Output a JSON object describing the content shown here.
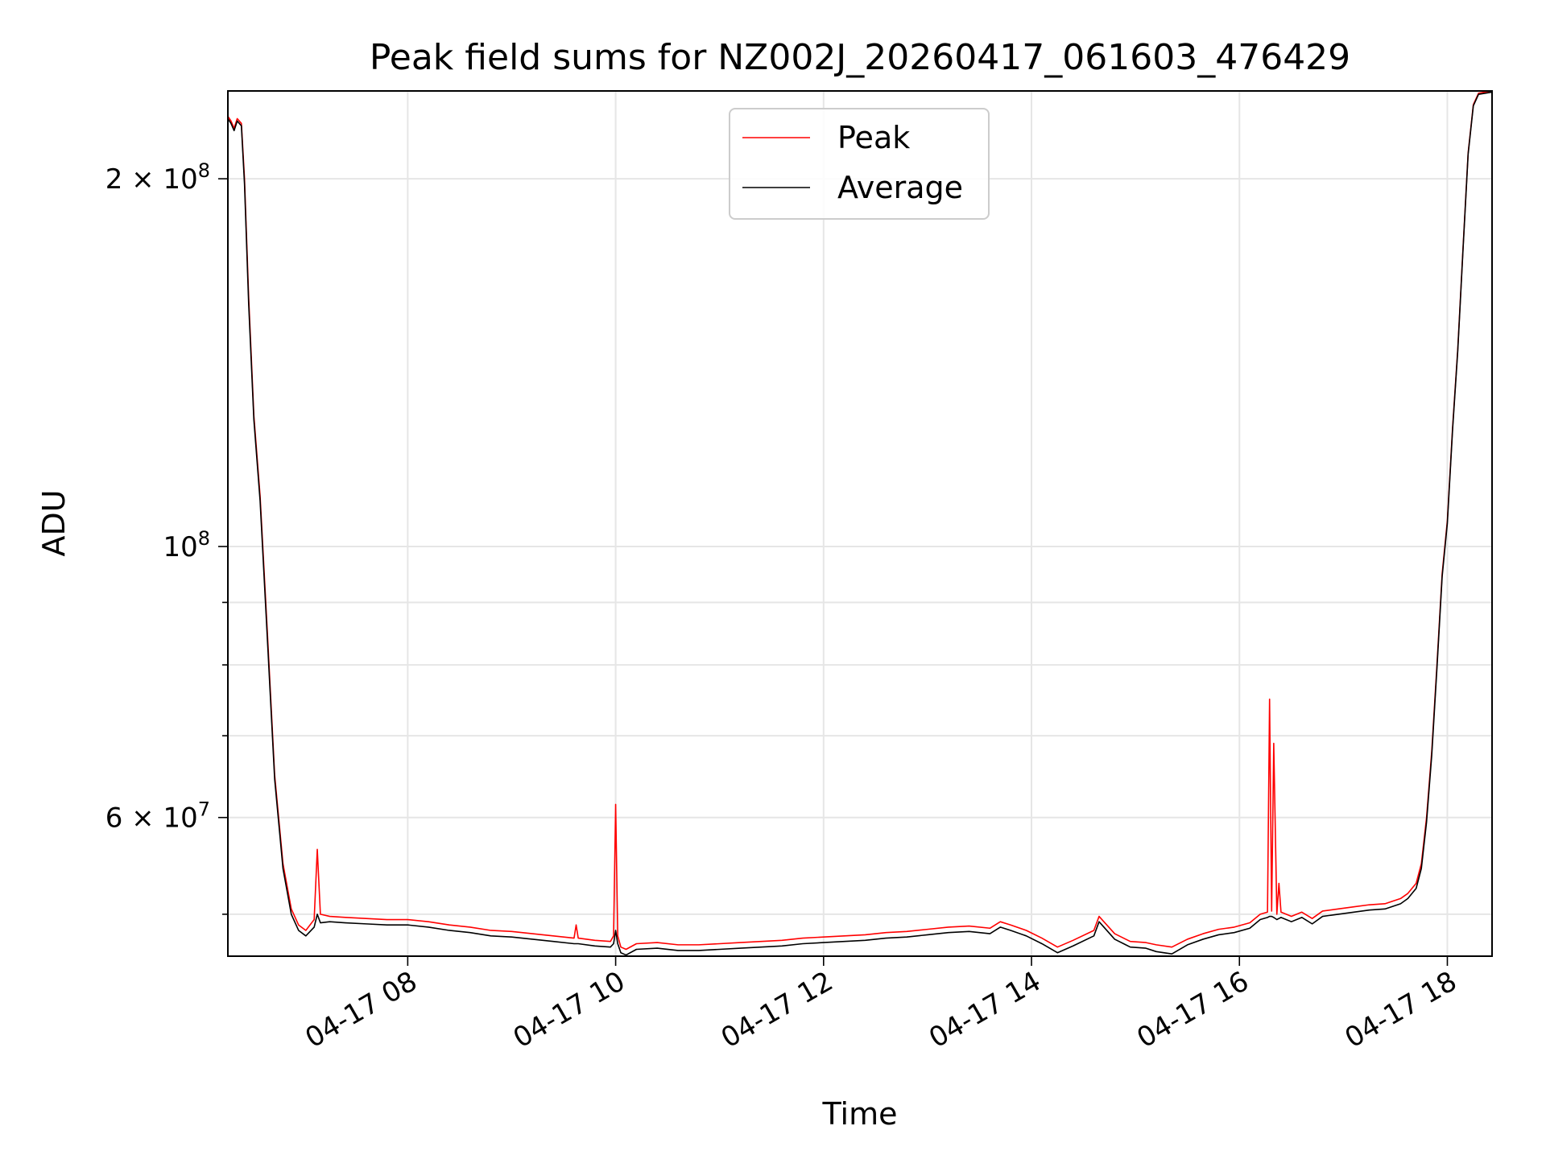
{
  "chart_data": {
    "type": "line",
    "title": "Peak field sums for NZ002J_20260417_061603_476429",
    "xlabel": "Time",
    "ylabel": "ADU",
    "yscale": "log",
    "grid": true,
    "legend_position": "top-center",
    "xlim": [
      6.27,
      18.43
    ],
    "ylim": [
      46200000,
      236000000
    ],
    "x_unit": "hours on 2026-04-17",
    "x_ticks": [
      {
        "value": 8,
        "label": "04-17 08"
      },
      {
        "value": 10,
        "label": "04-17 10"
      },
      {
        "value": 12,
        "label": "04-17 12"
      },
      {
        "value": 14,
        "label": "04-17 14"
      },
      {
        "value": 16,
        "label": "04-17 16"
      },
      {
        "value": 18,
        "label": "04-17 18"
      }
    ],
    "y_major_ticks": [
      {
        "value": 200000000,
        "base": "2 × 10",
        "exp": "8"
      },
      {
        "value": 100000000,
        "base": "10",
        "exp": "8"
      },
      {
        "value": 60000000,
        "base": "6 × 10",
        "exp": "7"
      }
    ],
    "y_minor_ticks": [
      50000000,
      70000000,
      80000000,
      90000000
    ],
    "series": [
      {
        "name": "Peak",
        "color": "#ff0000",
        "x": [
          6.27,
          6.3,
          6.33,
          6.36,
          6.4,
          6.43,
          6.47,
          6.52,
          6.58,
          6.65,
          6.72,
          6.8,
          6.88,
          6.95,
          7.02,
          7.1,
          7.13,
          7.16,
          7.25,
          7.4,
          7.6,
          7.8,
          8.0,
          8.2,
          8.4,
          8.6,
          8.8,
          9.0,
          9.2,
          9.4,
          9.6,
          9.62,
          9.64,
          9.8,
          9.95,
          9.98,
          10.0,
          10.02,
          10.05,
          10.1,
          10.2,
          10.4,
          10.6,
          10.8,
          11.0,
          11.2,
          11.4,
          11.6,
          11.8,
          12.0,
          12.2,
          12.4,
          12.6,
          12.8,
          13.0,
          13.2,
          13.4,
          13.6,
          13.7,
          13.8,
          13.95,
          14.1,
          14.25,
          14.4,
          14.6,
          14.65,
          14.8,
          14.95,
          15.1,
          15.2,
          15.35,
          15.5,
          15.65,
          15.8,
          15.95,
          16.1,
          16.2,
          16.27,
          16.29,
          16.31,
          16.33,
          16.36,
          16.38,
          16.4,
          16.5,
          16.6,
          16.7,
          16.8,
          16.95,
          17.1,
          17.25,
          17.4,
          17.55,
          17.62,
          17.7,
          17.75,
          17.8,
          17.85,
          17.9,
          17.95,
          18.0,
          18.05,
          18.1,
          18.15,
          18.2,
          18.25,
          18.3,
          18.43
        ],
        "values": [
          225000000,
          223000000,
          220000000,
          224000000,
          222000000,
          200000000,
          160000000,
          128000000,
          110000000,
          85000000,
          65000000,
          55000000,
          50500000,
          49000000,
          48500000,
          49500000,
          56500000,
          50000000,
          49800000,
          49700000,
          49600000,
          49500000,
          49500000,
          49300000,
          49000000,
          48800000,
          48500000,
          48400000,
          48200000,
          48000000,
          47800000,
          49000000,
          47800000,
          47600000,
          47500000,
          48000000,
          61500000,
          48000000,
          47000000,
          46800000,
          47300000,
          47400000,
          47200000,
          47200000,
          47300000,
          47400000,
          47500000,
          47600000,
          47800000,
          47900000,
          48000000,
          48100000,
          48300000,
          48400000,
          48600000,
          48800000,
          48900000,
          48700000,
          49300000,
          49000000,
          48500000,
          47800000,
          47000000,
          47600000,
          48500000,
          49800000,
          48200000,
          47500000,
          47400000,
          47200000,
          47000000,
          47700000,
          48200000,
          48600000,
          48800000,
          49200000,
          50000000,
          50200000,
          75000000,
          50300000,
          69000000,
          50000000,
          53000000,
          50200000,
          49800000,
          50200000,
          49600000,
          50300000,
          50500000,
          50700000,
          50900000,
          51000000,
          51500000,
          52000000,
          53000000,
          55000000,
          60000000,
          68000000,
          80000000,
          95000000,
          105000000,
          125000000,
          145000000,
          175000000,
          210000000,
          230000000,
          235000000,
          236000000
        ]
      },
      {
        "name": "Average",
        "color": "#000000",
        "x": [
          6.27,
          6.3,
          6.33,
          6.36,
          6.4,
          6.43,
          6.47,
          6.52,
          6.58,
          6.65,
          6.72,
          6.8,
          6.88,
          6.95,
          7.02,
          7.1,
          7.13,
          7.16,
          7.25,
          7.4,
          7.6,
          7.8,
          8.0,
          8.2,
          8.4,
          8.6,
          8.8,
          9.0,
          9.2,
          9.4,
          9.6,
          9.62,
          9.64,
          9.8,
          9.95,
          9.98,
          10.0,
          10.02,
          10.05,
          10.1,
          10.2,
          10.4,
          10.6,
          10.8,
          11.0,
          11.2,
          11.4,
          11.6,
          11.8,
          12.0,
          12.2,
          12.4,
          12.6,
          12.8,
          13.0,
          13.2,
          13.4,
          13.6,
          13.7,
          13.8,
          13.95,
          14.1,
          14.25,
          14.4,
          14.6,
          14.65,
          14.8,
          14.95,
          15.1,
          15.2,
          15.35,
          15.5,
          15.65,
          15.8,
          15.95,
          16.1,
          16.2,
          16.27,
          16.29,
          16.31,
          16.33,
          16.36,
          16.38,
          16.4,
          16.5,
          16.6,
          16.7,
          16.8,
          16.95,
          17.1,
          17.25,
          17.4,
          17.55,
          17.62,
          17.7,
          17.75,
          17.8,
          17.85,
          17.9,
          17.95,
          18.0,
          18.05,
          18.1,
          18.15,
          18.2,
          18.25,
          18.3,
          18.43
        ],
        "values": [
          224000000,
          222000000,
          219000000,
          223000000,
          221000000,
          198000000,
          158000000,
          127000000,
          109000000,
          84000000,
          64500000,
          54500000,
          50000000,
          48500000,
          48000000,
          48800000,
          50000000,
          49200000,
          49300000,
          49200000,
          49100000,
          49000000,
          49000000,
          48800000,
          48500000,
          48300000,
          48000000,
          47900000,
          47700000,
          47500000,
          47300000,
          47300000,
          47300000,
          47100000,
          47000000,
          47300000,
          48500000,
          47300000,
          46500000,
          46300000,
          46800000,
          46900000,
          46700000,
          46700000,
          46800000,
          46900000,
          47000000,
          47100000,
          47300000,
          47400000,
          47500000,
          47600000,
          47800000,
          47900000,
          48100000,
          48300000,
          48400000,
          48200000,
          48800000,
          48500000,
          48000000,
          47300000,
          46500000,
          47100000,
          48000000,
          49300000,
          47700000,
          47000000,
          46900000,
          46600000,
          46400000,
          47200000,
          47700000,
          48100000,
          48300000,
          48700000,
          49500000,
          49700000,
          49800000,
          49800000,
          49700000,
          49500000,
          49600000,
          49700000,
          49300000,
          49700000,
          49100000,
          49800000,
          50000000,
          50200000,
          50400000,
          50500000,
          51000000,
          51500000,
          52500000,
          54500000,
          59500000,
          67500000,
          79500000,
          94500000,
          104500000,
          124500000,
          144500000,
          174500000,
          209500000,
          229500000,
          234500000,
          235500000
        ]
      }
    ]
  }
}
